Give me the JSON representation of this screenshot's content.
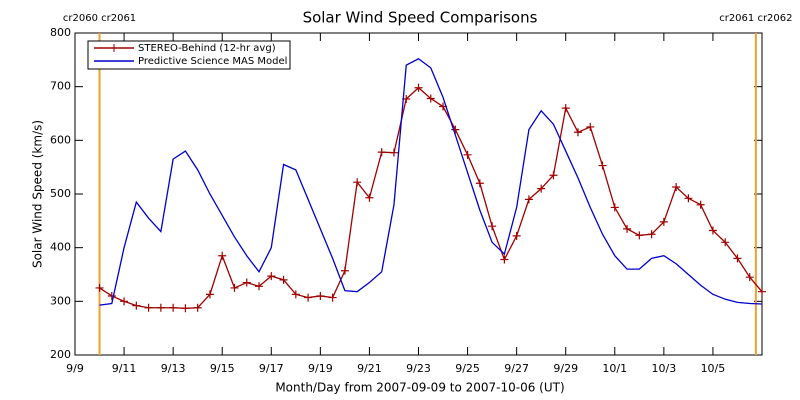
{
  "chart_data": {
    "type": "line",
    "title": "Solar Wind Speed Comparisons",
    "xlabel": "Month/Day from 2007-09-09 to 2007-10-06 (UT)",
    "ylabel": "Solar Wind Speed (km/s)",
    "x": [
      1,
      1.5,
      2,
      2.5,
      3,
      3.5,
      4,
      4.5,
      5,
      5.5,
      6,
      6.5,
      7,
      7.5,
      8,
      8.5,
      9,
      9.5,
      10,
      10.5,
      11,
      11.5,
      12,
      12.5,
      13,
      13.5,
      14,
      14.5,
      15,
      15.5,
      16,
      16.5,
      17,
      17.5,
      18,
      18.5,
      19,
      19.5,
      20,
      20.5,
      21,
      21.5,
      22,
      22.5,
      23,
      23.5,
      24,
      24.5,
      25,
      25.5,
      26,
      26.5,
      27,
      27.5,
      28
    ],
    "series": [
      {
        "name": "STEREO-Behind (12-hr avg)",
        "color": "#a00000",
        "marker": "plus",
        "values": [
          325,
          310,
          300,
          292,
          288,
          288,
          288,
          287,
          288,
          313,
          385,
          325,
          335,
          328,
          347,
          340,
          313,
          307,
          310,
          307,
          357,
          522,
          493,
          578,
          577,
          677,
          698,
          678,
          663,
          620,
          573,
          520,
          440,
          378,
          422,
          490,
          510,
          535,
          660,
          615,
          625,
          553,
          475,
          435,
          423,
          425,
          448,
          513,
          492,
          480,
          432,
          410,
          380,
          345,
          318
        ]
      },
      {
        "name": "Predictive Science MAS Model",
        "color": "#0000cc",
        "marker": "none",
        "values": [
          293,
          296,
          400,
          485,
          455,
          430,
          565,
          580,
          545,
          500,
          460,
          420,
          385,
          355,
          400,
          555,
          545,
          490,
          435,
          380,
          320,
          318,
          335,
          355,
          480,
          740,
          752,
          735,
          680,
          610,
          540,
          470,
          410,
          388,
          475,
          620,
          655,
          630,
          580,
          530,
          475,
          425,
          385,
          360,
          360,
          380,
          385,
          370,
          350,
          330,
          313,
          304,
          298,
          296,
          295
        ]
      }
    ],
    "xlim": [
      0,
      28
    ],
    "xticks": [
      {
        "value": 0,
        "label": "9/9"
      },
      {
        "value": 2,
        "label": "9/11"
      },
      {
        "value": 4,
        "label": "9/13"
      },
      {
        "value": 6,
        "label": "9/15"
      },
      {
        "value": 8,
        "label": "9/17"
      },
      {
        "value": 10,
        "label": "9/19"
      },
      {
        "value": 12,
        "label": "9/21"
      },
      {
        "value": 14,
        "label": "9/23"
      },
      {
        "value": 16,
        "label": "9/25"
      },
      {
        "value": 18,
        "label": "9/27"
      },
      {
        "value": 20,
        "label": "9/29"
      },
      {
        "value": 22,
        "label": "10/1"
      },
      {
        "value": 24,
        "label": "10/3"
      },
      {
        "value": 26,
        "label": "10/5"
      }
    ],
    "ylim": [
      200,
      800
    ],
    "yticks": [
      200,
      300,
      400,
      500,
      600,
      700,
      800
    ],
    "annotations": [
      {
        "text": "cr2060 cr2061",
        "x": 1,
        "color": "#f0a030"
      },
      {
        "text": "cr2061 cr2062",
        "x": 27.75,
        "color": "#f0a030"
      }
    ],
    "legend": "upper left"
  }
}
